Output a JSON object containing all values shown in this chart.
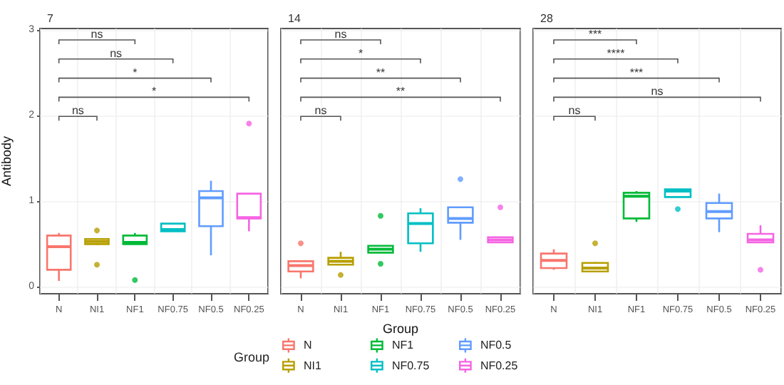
{
  "chart_data": [
    {
      "type": "box",
      "title": "7",
      "ylabel": "Antibody",
      "categories": [
        "N",
        "NI1",
        "NF1",
        "NF0.75",
        "NF0.5",
        "NF0.25"
      ],
      "ylim": [
        -0.08,
        3.02
      ],
      "yticks": [
        0,
        1,
        2,
        3
      ],
      "grid": true,
      "series": [
        {
          "color": "#f8766d",
          "boxes": [
            {
              "low": 0.07,
              "q1": 0.2,
              "median": 0.47,
              "q3": 0.6,
              "high": 0.63
            },
            null,
            null,
            null,
            null,
            null
          ]
        },
        {
          "color": "#b79f00",
          "boxes": [
            null,
            {
              "low": 0.49,
              "q1": 0.5,
              "median": 0.53,
              "q3": 0.56,
              "high": 0.57,
              "outliers": [
                0.66,
                0.26
              ]
            },
            null,
            null,
            null,
            null
          ]
        },
        {
          "color": "#00ba38",
          "boxes": [
            null,
            null,
            {
              "low": 0.5,
              "q1": 0.5,
              "median": 0.52,
              "q3": 0.6,
              "high": 0.63,
              "outliers": [
                0.08
              ]
            },
            null,
            null,
            null
          ]
        },
        {
          "color": "#00bfc4",
          "boxes": [
            null,
            null,
            null,
            {
              "low": 0.65,
              "q1": 0.65,
              "median": 0.67,
              "q3": 0.74,
              "high": 0.74
            },
            null,
            null
          ]
        },
        {
          "color": "#619cff",
          "boxes": [
            null,
            null,
            null,
            null,
            {
              "low": 0.37,
              "q1": 0.71,
              "median": 1.04,
              "q3": 1.12,
              "high": 1.24
            },
            null
          ]
        },
        {
          "color": "#f564e3",
          "boxes": [
            null,
            null,
            null,
            null,
            null,
            {
              "low": 0.65,
              "q1": 0.8,
              "median": 0.81,
              "q3": 1.09,
              "high": 1.09,
              "outliers": [
                1.91
              ]
            }
          ]
        }
      ],
      "annotations": [
        "ns",
        "ns",
        "*",
        "*",
        "ns"
      ]
    },
    {
      "type": "box",
      "title": "14",
      "xlabel": "Group",
      "legend": "bottom",
      "legend_title": "Group",
      "tick_labels": "x",
      "categories": [
        "N",
        "NI1",
        "NF1",
        "NF0.75",
        "NF0.5",
        "NF0.25"
      ],
      "ylim": [
        -0.08,
        3.02
      ],
      "yticks": [
        0,
        1,
        2,
        3
      ],
      "grid": true,
      "series": [
        {
          "name": "N",
          "color": "#f8766d",
          "boxes": [
            {
              "low": 0.1,
              "q1": 0.18,
              "median": 0.25,
              "q3": 0.3,
              "high": 0.3,
              "outliers": [
                0.51
              ]
            },
            null,
            null,
            null,
            null,
            null
          ]
        },
        {
          "name": "NI1",
          "color": "#b79f00",
          "boxes": [
            null,
            {
              "low": 0.26,
              "q1": 0.26,
              "median": 0.3,
              "q3": 0.34,
              "high": 0.41,
              "outliers": [
                0.14
              ]
            },
            null,
            null,
            null,
            null
          ]
        },
        {
          "name": "NF1",
          "color": "#00ba38",
          "boxes": [
            null,
            null,
            {
              "low": 0.4,
              "q1": 0.4,
              "median": 0.44,
              "q3": 0.48,
              "high": 0.48,
              "outliers": [
                0.83,
                0.27
              ]
            },
            null,
            null,
            null
          ]
        },
        {
          "name": "NF0.75",
          "color": "#00bfc4",
          "boxes": [
            null,
            null,
            null,
            {
              "low": 0.41,
              "q1": 0.51,
              "median": 0.74,
              "q3": 0.86,
              "high": 0.92
            },
            null,
            null
          ]
        },
        {
          "name": "NF0.5",
          "color": "#619cff",
          "boxes": [
            null,
            null,
            null,
            null,
            {
              "low": 0.55,
              "q1": 0.75,
              "median": 0.8,
              "q3": 0.93,
              "high": 0.93,
              "outliers": [
                1.26
              ]
            },
            null
          ]
        },
        {
          "name": "NF0.25",
          "color": "#f564e3",
          "boxes": [
            null,
            null,
            null,
            null,
            null,
            {
              "low": 0.52,
              "q1": 0.52,
              "median": 0.55,
              "q3": 0.58,
              "high": 0.58,
              "outliers": [
                0.93
              ]
            }
          ]
        }
      ],
      "annotations": [
        "ns",
        "*",
        "**",
        "**",
        "ns"
      ]
    },
    {
      "type": "box",
      "title": "28",
      "tick_labels": "x",
      "categories": [
        "N",
        "NI1",
        "NF1",
        "NF0.75",
        "NF0.5",
        "NF0.25"
      ],
      "ylim": [
        -0.08,
        3.02
      ],
      "yticks": [
        0,
        1,
        2,
        3
      ],
      "grid": true,
      "series": [
        {
          "color": "#f8766d",
          "boxes": [
            {
              "low": 0.2,
              "q1": 0.22,
              "median": 0.31,
              "q3": 0.39,
              "high": 0.44
            },
            null,
            null,
            null,
            null,
            null
          ]
        },
        {
          "color": "#b79f00",
          "boxes": [
            null,
            {
              "low": 0.17,
              "q1": 0.18,
              "median": 0.22,
              "q3": 0.28,
              "high": 0.29,
              "outliers": [
                0.51
              ]
            },
            null,
            null,
            null,
            null
          ]
        },
        {
          "color": "#00ba38",
          "boxes": [
            null,
            null,
            {
              "low": 0.76,
              "q1": 0.8,
              "median": 1.06,
              "q3": 1.1,
              "high": 1.12
            },
            null,
            null,
            null
          ]
        },
        {
          "color": "#00bfc4",
          "boxes": [
            null,
            null,
            null,
            {
              "low": 1.05,
              "q1": 1.05,
              "median": 1.12,
              "q3": 1.14,
              "high": 1.14,
              "outliers": [
                0.91
              ]
            },
            null,
            null
          ]
        },
        {
          "color": "#619cff",
          "boxes": [
            null,
            null,
            null,
            null,
            {
              "low": 0.64,
              "q1": 0.8,
              "median": 0.88,
              "q3": 0.98,
              "high": 1.09
            },
            null
          ]
        },
        {
          "color": "#f564e3",
          "boxes": [
            null,
            null,
            null,
            null,
            null,
            {
              "low": 0.52,
              "q1": 0.52,
              "median": 0.55,
              "q3": 0.62,
              "high": 0.72,
              "outliers": [
                0.2
              ]
            }
          ]
        }
      ],
      "annotations": [
        "***",
        "****",
        "***",
        "ns",
        "ns"
      ]
    }
  ]
}
